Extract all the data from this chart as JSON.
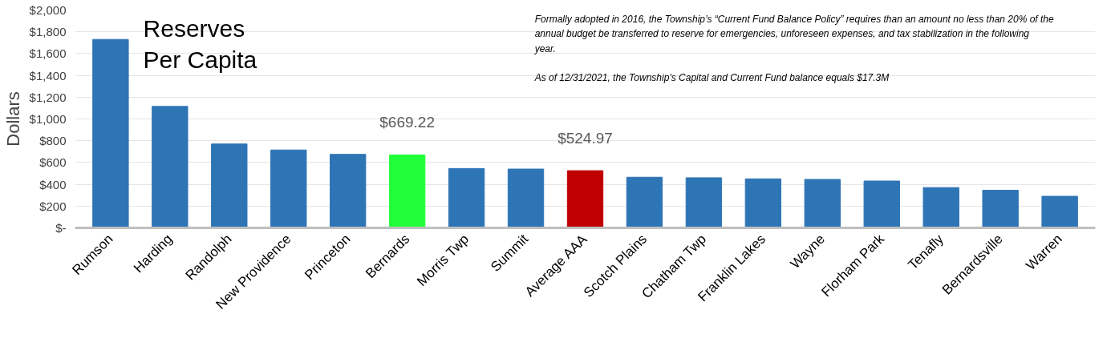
{
  "chart_data": {
    "type": "bar",
    "title": "Reserves Per Capita",
    "ylabel": "Dollars",
    "categories": [
      "Rumson",
      "Harding",
      "Randolph",
      "New Providence",
      "Princeton",
      "Bernards",
      "Morris Twp",
      "Summit",
      "Average AAA",
      "Scotch Plains",
      "Chatham Twp",
      "Franklin Lakes",
      "Wayne",
      "Florham Park",
      "Tenafly",
      "Bernardsville",
      "Warren"
    ],
    "values": [
      1730,
      1115,
      770,
      715,
      675,
      669.22,
      545,
      540,
      524.97,
      465,
      460,
      450,
      445,
      430,
      370,
      345,
      290
    ],
    "colors": [
      "#2e75b6",
      "#2e75b6",
      "#2e75b6",
      "#2e75b6",
      "#2e75b6",
      "#22ff3a",
      "#2e75b6",
      "#2e75b6",
      "#c00000",
      "#2e75b6",
      "#2e75b6",
      "#2e75b6",
      "#2e75b6",
      "#2e75b6",
      "#2e75b6",
      "#2e75b6",
      "#2e75b6"
    ],
    "value_labels": [
      null,
      null,
      null,
      null,
      null,
      "$669.22",
      null,
      null,
      "$524.97",
      null,
      null,
      null,
      null,
      null,
      null,
      null,
      null
    ],
    "ylim": [
      0,
      2000
    ],
    "yticks": [
      {
        "value": 0,
        "label": "$-"
      },
      {
        "value": 200,
        "label": "$200"
      },
      {
        "value": 400,
        "label": "$400"
      },
      {
        "value": 600,
        "label": "$600"
      },
      {
        "value": 800,
        "label": "$800"
      },
      {
        "value": 1000,
        "label": "$1,000"
      },
      {
        "value": 1200,
        "label": "$1,200"
      },
      {
        "value": 1400,
        "label": "$1,400"
      },
      {
        "value": 1600,
        "label": "$1,600"
      },
      {
        "value": 1800,
        "label": "$1,800"
      },
      {
        "value": 2000,
        "label": "$2,000"
      }
    ],
    "grid": "y",
    "annotations": [
      "Formally adopted in 2016, the Township’s “Current Fund Balance Policy” requires than an amount no less than 20% of the annual budget be transferred to reserve for emergencies, unforeseen expenses, and tax stabilization in the following year.",
      "As of 12/31/2021, the Township’s Capital and Current Fund balance equals $17.3M"
    ]
  }
}
